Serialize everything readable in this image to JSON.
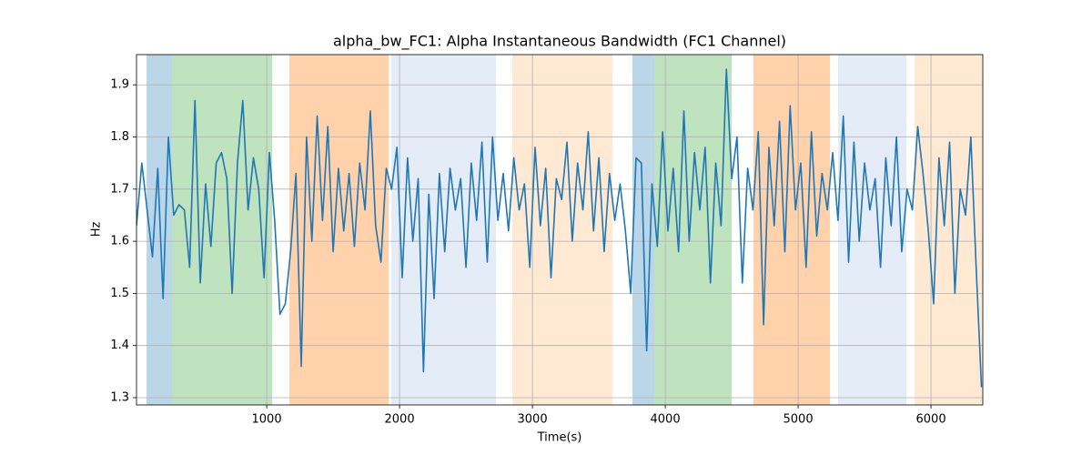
{
  "chart_data": {
    "type": "line",
    "title": "alpha_bw_FC1: Alpha Instantaneous Bandwidth (FC1 Channel)",
    "x_label": "Time(s)",
    "y_label": "Hz",
    "xlim": [
      20,
      6390
    ],
    "ylim": [
      1.286,
      1.958
    ],
    "xticks": [
      1000,
      2000,
      3000,
      4000,
      5000,
      6000
    ],
    "yticks": [
      1.3,
      1.4,
      1.5,
      1.6,
      1.7,
      1.8,
      1.9
    ],
    "grid": true,
    "spans": [
      {
        "start": 96,
        "end": 288,
        "color": "rgba(31,119,180,0.3)"
      },
      {
        "start": 288,
        "end": 1041,
        "color": "rgba(44,160,44,0.3)"
      },
      {
        "start": 1171,
        "end": 1918,
        "color": "rgba(255,127,14,0.35)"
      },
      {
        "start": 1938,
        "end": 2726,
        "color": "rgba(174,199,232,0.33)"
      },
      {
        "start": 2849,
        "end": 3603,
        "color": "rgba(255,187,120,0.33)"
      },
      {
        "start": 3753,
        "end": 3918,
        "color": "rgba(31,119,180,0.3)"
      },
      {
        "start": 3918,
        "end": 4500,
        "color": "rgba(44,160,44,0.3)"
      },
      {
        "start": 4664,
        "end": 5240,
        "color": "rgba(255,127,14,0.35)"
      },
      {
        "start": 5301,
        "end": 5815,
        "color": "rgba(174,199,232,0.33)"
      },
      {
        "start": 5877,
        "end": 6390,
        "color": "rgba(255,187,120,0.33)"
      }
    ],
    "x": [
      20,
      60,
      100,
      140,
      180,
      220,
      260,
      300,
      340,
      380,
      420,
      460,
      500,
      540,
      580,
      620,
      660,
      700,
      740,
      780,
      820,
      860,
      900,
      940,
      980,
      1020,
      1060,
      1100,
      1140,
      1180,
      1220,
      1260,
      1300,
      1340,
      1380,
      1420,
      1460,
      1500,
      1540,
      1580,
      1620,
      1660,
      1700,
      1740,
      1780,
      1820,
      1860,
      1900,
      1940,
      1980,
      2020,
      2060,
      2100,
      2140,
      2180,
      2220,
      2260,
      2300,
      2340,
      2380,
      2420,
      2460,
      2500,
      2540,
      2580,
      2620,
      2660,
      2700,
      2740,
      2780,
      2820,
      2860,
      2900,
      2940,
      2980,
      3020,
      3060,
      3100,
      3140,
      3180,
      3220,
      3260,
      3300,
      3340,
      3380,
      3420,
      3460,
      3500,
      3540,
      3580,
      3620,
      3660,
      3700,
      3740,
      3780,
      3820,
      3860,
      3900,
      3940,
      3980,
      4020,
      4060,
      4100,
      4140,
      4180,
      4220,
      4260,
      4300,
      4340,
      4380,
      4420,
      4460,
      4500,
      4540,
      4580,
      4620,
      4660,
      4700,
      4740,
      4780,
      4820,
      4860,
      4900,
      4940,
      4980,
      5020,
      5060,
      5100,
      5140,
      5180,
      5220,
      5260,
      5300,
      5340,
      5380,
      5420,
      5460,
      5500,
      5540,
      5580,
      5620,
      5660,
      5700,
      5740,
      5780,
      5820,
      5860,
      5900,
      5940,
      5980,
      6020,
      6060,
      6100,
      6140,
      6180,
      6220,
      6260,
      6300,
      6340,
      6380
    ],
    "series": [
      {
        "color": "#1f77b4",
        "values": [
          1.63,
          1.75,
          1.66,
          1.57,
          1.74,
          1.49,
          1.8,
          1.65,
          1.67,
          1.66,
          1.55,
          1.87,
          1.52,
          1.71,
          1.59,
          1.75,
          1.77,
          1.72,
          1.5,
          1.75,
          1.87,
          1.66,
          1.76,
          1.7,
          1.53,
          1.77,
          1.64,
          1.46,
          1.48,
          1.58,
          1.73,
          1.36,
          1.8,
          1.6,
          1.84,
          1.64,
          1.82,
          1.58,
          1.74,
          1.62,
          1.73,
          1.59,
          1.75,
          1.66,
          1.85,
          1.63,
          1.56,
          1.74,
          1.7,
          1.78,
          1.53,
          1.76,
          1.6,
          1.72,
          1.35,
          1.69,
          1.49,
          1.73,
          1.58,
          1.74,
          1.66,
          1.72,
          1.55,
          1.75,
          1.64,
          1.79,
          1.56,
          1.8,
          1.64,
          1.73,
          1.62,
          1.76,
          1.66,
          1.71,
          1.55,
          1.78,
          1.63,
          1.74,
          1.53,
          1.72,
          1.68,
          1.79,
          1.6,
          1.75,
          1.66,
          1.81,
          1.62,
          1.76,
          1.58,
          1.73,
          1.64,
          1.71,
          1.62,
          1.5,
          1.76,
          1.75,
          1.39,
          1.71,
          1.59,
          1.81,
          1.62,
          1.74,
          1.58,
          1.85,
          1.6,
          1.77,
          1.66,
          1.78,
          1.52,
          1.75,
          1.63,
          1.93,
          1.72,
          1.8,
          1.52,
          1.74,
          1.66,
          1.81,
          1.44,
          1.78,
          1.63,
          1.83,
          1.58,
          1.86,
          1.66,
          1.75,
          1.55,
          1.81,
          1.61,
          1.73,
          1.66,
          1.77,
          1.64,
          1.84,
          1.56,
          1.79,
          1.6,
          1.75,
          1.66,
          1.72,
          1.55,
          1.76,
          1.63,
          1.8,
          1.58,
          1.7,
          1.66,
          1.82,
          1.73,
          1.62,
          1.48,
          1.76,
          1.63,
          1.79,
          1.5,
          1.7,
          1.65,
          1.8,
          1.55,
          1.32
        ]
      }
    ]
  }
}
